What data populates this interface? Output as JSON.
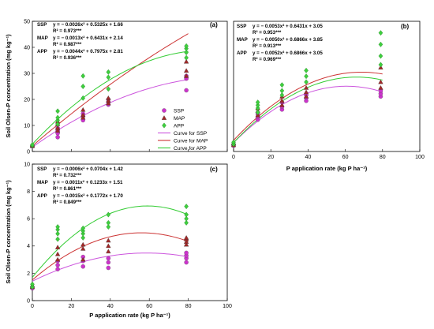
{
  "colors": {
    "SSP": "#cc33cc",
    "MAP": "#a02828",
    "APP": "#3ecf3e",
    "curve_SSP": "#cc55dd",
    "curve_MAP": "#cc3333",
    "curve_APP": "#33cc33"
  },
  "chart_data": [
    {
      "type": "scatter",
      "panel_label": "(a)",
      "ylabel": "Soil Olsen-P concentration (mg kg⁻¹)",
      "xlabel": "",
      "xlim": [
        0,
        100
      ],
      "ylim": [
        0,
        50
      ],
      "xticks": [],
      "yticks": [
        0,
        10,
        20,
        30,
        40,
        50
      ],
      "equations": [
        {
          "name": "SSP",
          "eq": "y = − 0.0026x² + 0.5325x + 1.66",
          "r2": "R² = 0.973***"
        },
        {
          "name": "MAP",
          "eq": "y = − 0.0013x² + 0.6431x + 2.14",
          "r2": "R² = 0.987***"
        },
        {
          "name": "APP",
          "eq": "y = − 0.0044x² + 0.7975x + 2.81",
          "r2": "R² = 0.936***"
        }
      ],
      "series": [
        {
          "name": "SSP",
          "marker": "circle",
          "x": [
            0,
            0,
            13,
            13,
            13,
            13,
            26,
            26,
            26,
            39,
            39,
            39,
            79,
            79,
            79
          ],
          "y": [
            2,
            2.3,
            5.5,
            7,
            8,
            9,
            12,
            13.5,
            14.5,
            18,
            19,
            20,
            23.5,
            28,
            29
          ]
        },
        {
          "name": "MAP",
          "marker": "triangle",
          "x": [
            0,
            0,
            13,
            13,
            13,
            13,
            26,
            26,
            26,
            39,
            39,
            39,
            79,
            79,
            79
          ],
          "y": [
            2.1,
            2.4,
            8,
            9,
            10.5,
            11.5,
            13,
            14,
            16,
            18.5,
            19.5,
            20.5,
            29,
            31,
            34.5
          ]
        },
        {
          "name": "APP",
          "marker": "diamond",
          "x": [
            0,
            0,
            13,
            13,
            13,
            13,
            26,
            26,
            26,
            39,
            39,
            39,
            79,
            79,
            79,
            79
          ],
          "y": [
            2.3,
            2.6,
            10.5,
            12,
            13,
            15.5,
            20.5,
            25,
            29,
            24,
            28.5,
            30.5,
            36,
            38,
            39.5,
            40.5
          ]
        }
      ],
      "curves": [
        {
          "name": "SSP",
          "a": -0.0026,
          "b": 0.5325,
          "c": 1.66
        },
        {
          "name": "MAP",
          "a": -0.0013,
          "b": 0.6431,
          "c": 2.14
        },
        {
          "name": "APP",
          "a": -0.0044,
          "b": 0.7975,
          "c": 2.81
        }
      ],
      "legend": [
        "SSP",
        "MAP",
        "APP",
        "Curve for SSP",
        "Curve for MAP",
        "Curve for APP"
      ],
      "legend_position": "bottom-right"
    },
    {
      "type": "scatter",
      "panel_label": "(b)",
      "ylabel": "",
      "xlabel": "P application rate (kg P ha⁻¹)",
      "xlim": [
        0,
        100
      ],
      "ylim": [
        0,
        45
      ],
      "xticks": [
        0,
        20,
        40,
        60,
        80,
        100
      ],
      "yticks": [],
      "equations": [
        {
          "name": "SSP",
          "eq": "y = − 0.0053x² + 0.6431x + 3.05",
          "r2": "R² = 0.953***"
        },
        {
          "name": "MAP",
          "eq": "y = − 0.0050x² + 0.6866x + 3.85",
          "r2": "R² = 0.913***"
        },
        {
          "name": "APP",
          "eq": "y = − 0.0052x² + 0.6866x + 3.05",
          "r2": "R² = 0.969***"
        }
      ],
      "series": [
        {
          "name": "SSP",
          "marker": "circle",
          "x": [
            0,
            0,
            13,
            13,
            13,
            26,
            26,
            26,
            39,
            39,
            39,
            79,
            79,
            79
          ],
          "y": [
            2,
            2.5,
            11,
            12,
            13,
            14.5,
            15.5,
            17,
            17.5,
            18.5,
            19.5,
            19,
            20,
            21
          ]
        },
        {
          "name": "MAP",
          "marker": "triangle",
          "x": [
            0,
            0,
            13,
            13,
            13,
            26,
            26,
            26,
            39,
            39,
            39,
            79,
            79,
            79
          ],
          "y": [
            2.2,
            2.8,
            12.5,
            14,
            15,
            16,
            17.5,
            19,
            19,
            20.5,
            22,
            22,
            24,
            29
          ]
        },
        {
          "name": "APP",
          "marker": "diamond",
          "x": [
            0,
            0,
            13,
            13,
            13,
            13,
            26,
            26,
            26,
            39,
            39,
            39,
            79,
            79,
            79,
            79
          ],
          "y": [
            2.5,
            3.2,
            13.5,
            15,
            16,
            17,
            19.5,
            21,
            23,
            24,
            26,
            28,
            30,
            33,
            37,
            41
          ]
        }
      ],
      "curves": [
        {
          "name": "SSP",
          "a": -0.0053,
          "b": 0.6431,
          "c": 3.05
        },
        {
          "name": "MAP",
          "a": -0.005,
          "b": 0.6866,
          "c": 3.85
        },
        {
          "name": "APP",
          "a": -0.0052,
          "b": 0.6866,
          "c": 3.05
        }
      ]
    },
    {
      "type": "scatter",
      "panel_label": "(c)",
      "ylabel": "Soil Olsen-P concentration (mg kg⁻¹)",
      "xlabel": "P application rate (kg P ha⁻¹)",
      "xlim": [
        0,
        100
      ],
      "ylim": [
        0,
        10
      ],
      "xticks": [
        0,
        20,
        40,
        60,
        80,
        100
      ],
      "yticks": [
        0,
        2,
        4,
        6,
        8,
        10
      ],
      "equations": [
        {
          "name": "SSP",
          "eq": "y = − 0.0006x² + 0.0704x + 1.42",
          "r2": "R² = 0.732***"
        },
        {
          "name": "MAP",
          "eq": "y = − 0.0011x² + 0.1233x + 1.51",
          "r2": "R² = 0.861***"
        },
        {
          "name": "APP",
          "eq": "y = − 0.0015x² + 0.1772x + 1.70",
          "r2": "R² = 0.849***"
        }
      ],
      "series": [
        {
          "name": "SSP",
          "marker": "circle",
          "x": [
            0,
            0,
            13,
            13,
            13,
            26,
            26,
            26,
            39,
            39,
            39,
            79,
            79,
            79,
            79
          ],
          "y": [
            0.9,
            1.0,
            2.3,
            2.6,
            2.9,
            2.5,
            2.9,
            3.2,
            2.4,
            2.8,
            3.1,
            2.8,
            3.1,
            3.3,
            3.5
          ]
        },
        {
          "name": "MAP",
          "marker": "triangle",
          "x": [
            0,
            0,
            13,
            13,
            13,
            26,
            26,
            26,
            39,
            39,
            39,
            79,
            79,
            79,
            79
          ],
          "y": [
            1.0,
            1.1,
            3,
            3.4,
            3.9,
            3.0,
            3.8,
            4.1,
            3.6,
            4.0,
            4.4,
            4.1,
            4.3,
            4.5,
            4.6
          ]
        },
        {
          "name": "APP",
          "marker": "diamond",
          "x": [
            0,
            0,
            13,
            13,
            13,
            13,
            26,
            26,
            26,
            26,
            39,
            39,
            39,
            79,
            79,
            79,
            79
          ],
          "y": [
            1.0,
            1.2,
            4.5,
            4.9,
            5.2,
            5.4,
            4.6,
            4.9,
            5.1,
            5.3,
            5.4,
            5.7,
            6.3,
            5.7,
            6.0,
            6.3,
            6.9
          ]
        }
      ],
      "curves": [
        {
          "name": "SSP",
          "a": -0.0006,
          "b": 0.0704,
          "c": 1.42
        },
        {
          "name": "MAP",
          "a": -0.0011,
          "b": 0.1233,
          "c": 1.51
        },
        {
          "name": "APP",
          "a": -0.0015,
          "b": 0.1772,
          "c": 1.7
        }
      ]
    }
  ]
}
